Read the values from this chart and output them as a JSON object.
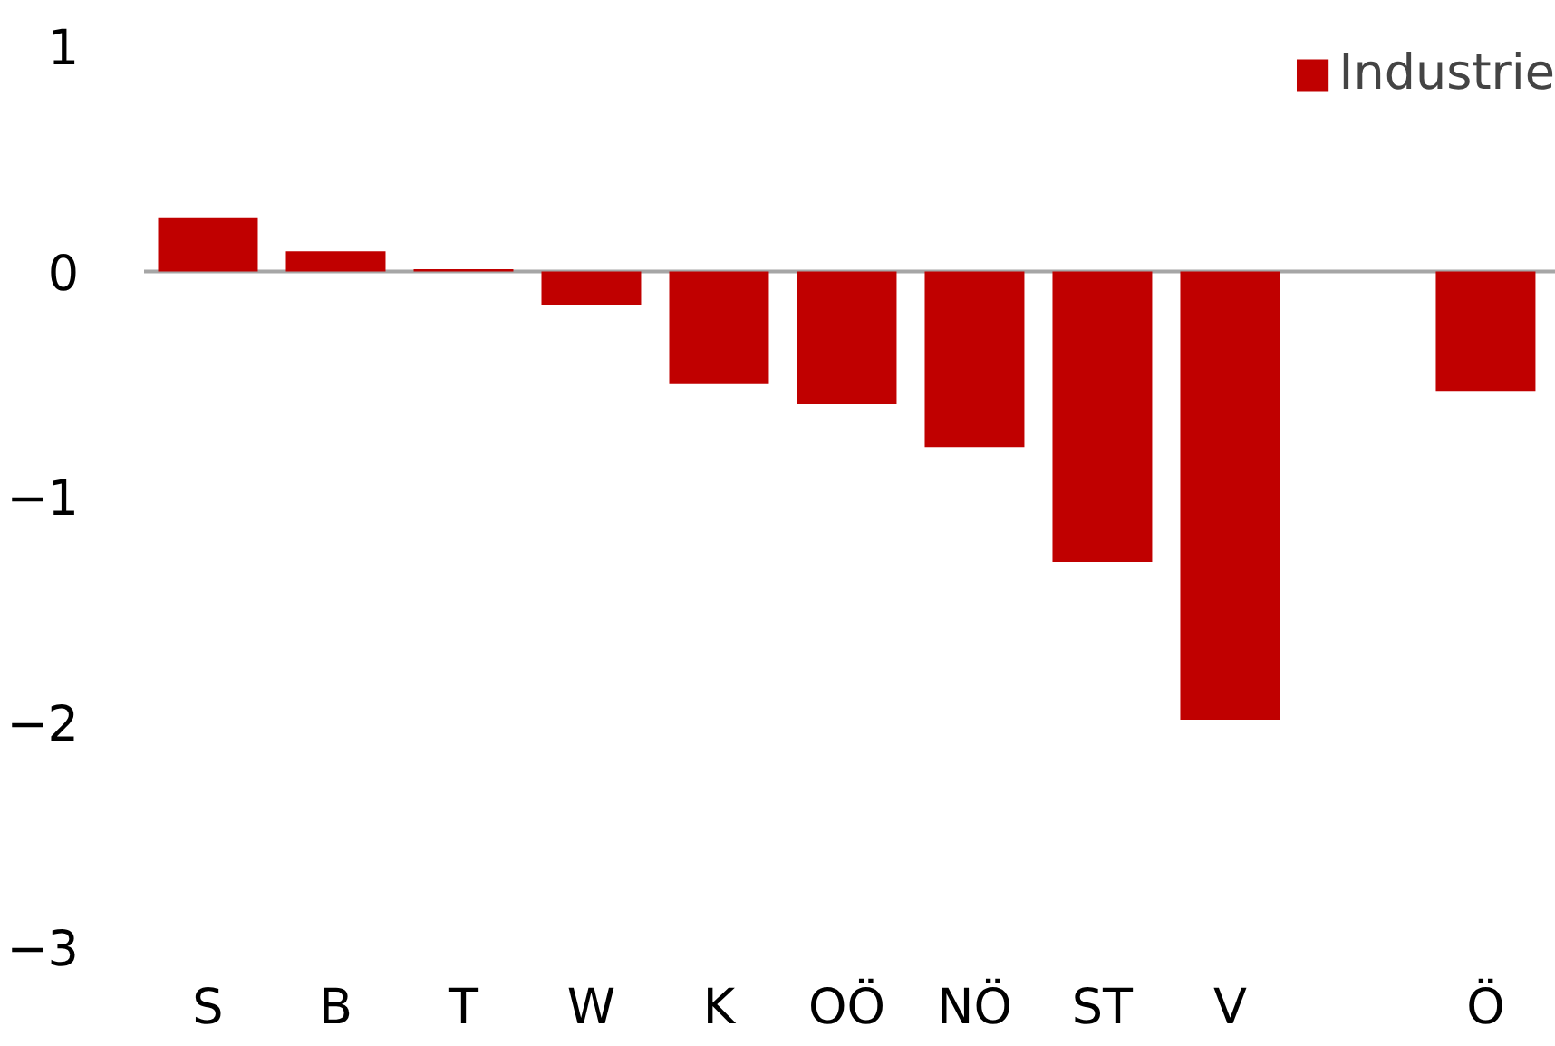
{
  "chart_data": {
    "type": "bar",
    "categories": [
      "S",
      "B",
      "T",
      "W",
      "K",
      "OÖ",
      "NÖ",
      "ST",
      "V",
      null,
      "Ö"
    ],
    "series": [
      {
        "name": "Industrie",
        "color": "#c00000",
        "values": [
          0.24,
          0.09,
          0.01,
          -0.15,
          -0.5,
          -0.59,
          -0.78,
          -1.29,
          -1.99,
          null,
          -0.53
        ]
      }
    ],
    "ylim": [
      -3,
      1
    ],
    "yticks": [
      -3,
      -2,
      -1,
      0,
      1
    ],
    "grid": false,
    "legend": "top right",
    "ref_lines": [
      {
        "axis": "y",
        "value": 0,
        "color": "#a6a6a6"
      }
    ]
  }
}
